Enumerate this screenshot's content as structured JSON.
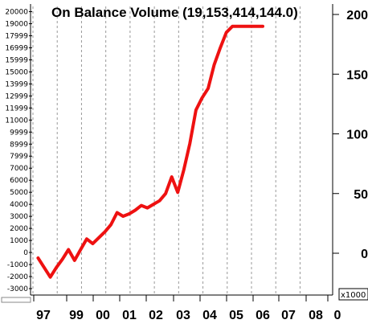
{
  "chart_data": {
    "type": "line",
    "title": "On Balance Volume (19,153,414,144.0)",
    "left_axis": {
      "ticks": [
        "20000",
        "19000",
        "17999",
        "16999",
        "15999",
        "15000",
        "13999",
        "12999",
        "11999",
        "11000",
        "9999",
        "8999",
        "7999",
        "7000",
        "6000",
        "5000",
        "4000",
        "3000",
        "2000",
        "1000",
        "0",
        "-1000",
        "-2000",
        "-3000"
      ],
      "range": [
        -3000,
        20000
      ]
    },
    "right_axis": {
      "ticks": [
        "200",
        "150",
        "100",
        "50",
        "0"
      ],
      "unit_label": "x1000",
      "range": [
        -25,
        205
      ]
    },
    "x_axis": {
      "ticks": [
        "97",
        "99",
        "00",
        "01",
        "02",
        "03",
        "04",
        "05",
        "06",
        "07",
        "08",
        "0"
      ],
      "range": [
        1996.5,
        2008.8
      ]
    },
    "grid": "vertical",
    "series": [
      {
        "color": "#ee1111",
        "x": [
          1996.75,
          1997.0,
          1997.25,
          1997.5,
          1997.75,
          1998.0,
          1998.25,
          1998.5,
          1998.75,
          1999.0,
          1999.25,
          1999.5,
          1999.75,
          2000.0,
          2000.25,
          2000.5,
          2000.75,
          2001.0,
          2001.25,
          2001.5,
          2001.75,
          2002.0,
          2002.25,
          2002.5,
          2002.75,
          2003.0,
          2003.25,
          2003.5,
          2003.75,
          2004.0,
          2004.25,
          2004.5,
          2004.75,
          2005.0,
          2005.25,
          2005.5,
          2005.75,
          2006.0
        ],
        "y": [
          -4,
          -12,
          -20,
          -12,
          -5,
          3,
          -6,
          3,
          12,
          8,
          13,
          18,
          24,
          34,
          31,
          33,
          36,
          40,
          38,
          41,
          44,
          50,
          64,
          51,
          70,
          92,
          120,
          130,
          138,
          158,
          172,
          185,
          190,
          190,
          190,
          190,
          190,
          190
        ]
      }
    ]
  }
}
